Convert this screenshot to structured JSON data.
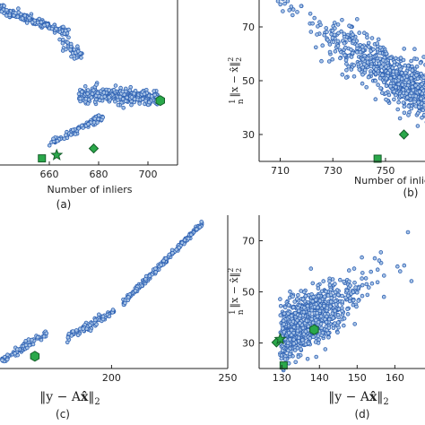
{
  "colors": {
    "point_fill": "#a9c4e6",
    "point_stroke": "#2f62b3",
    "marker_fill": "#2aa84a",
    "marker_stroke": "#155e2a",
    "axis": "#222222"
  },
  "chart_data": [
    {
      "id": "a",
      "type": "scatter",
      "caption": "(a)",
      "xlabel": "Number of inliers",
      "ylabel": "",
      "xlim": [
        640,
        712
      ],
      "ylim": [
        0,
        100
      ],
      "xticks": [
        660,
        680,
        700
      ],
      "xtick_labels": [
        "660",
        "680",
        "700"
      ],
      "yticks": [],
      "grid": false,
      "markers": [
        {
          "shape": "square",
          "x": 657,
          "y": 4
        },
        {
          "shape": "star",
          "x": 663,
          "y": 6
        },
        {
          "shape": "diamond",
          "x": 678,
          "y": 10
        },
        {
          "shape": "hexagon",
          "x": 705,
          "y": 39
        }
      ]
    },
    {
      "id": "b",
      "type": "scatter",
      "caption": "(b)",
      "xlabel": "Number of inliers",
      "ylabel": "1/n ||x − x̂||₂²",
      "xlim": [
        702,
        765
      ],
      "ylim": [
        20,
        80
      ],
      "xticks": [
        710,
        730,
        750
      ],
      "xtick_labels": [
        "710",
        "730",
        "750"
      ],
      "yticks": [
        30,
        50,
        70
      ],
      "ytick_labels": [
        "30",
        "50",
        "70"
      ],
      "grid": false,
      "markers": [
        {
          "shape": "square",
          "x": 747,
          "y": 21
        },
        {
          "shape": "diamond",
          "x": 757,
          "y": 30
        }
      ]
    },
    {
      "id": "c",
      "type": "scatter",
      "caption": "(c)",
      "xlabel": "||y − Ax̂||₂",
      "ylabel": "",
      "xlim": [
        152,
        250
      ],
      "ylim": [
        0,
        100
      ],
      "xticks": [
        200,
        250
      ],
      "xtick_labels": [
        "200",
        "250"
      ],
      "yticks": [],
      "grid": false,
      "markers": [
        {
          "shape": "hexagon",
          "x": 167,
          "y": 8
        }
      ]
    },
    {
      "id": "d",
      "type": "scatter",
      "caption": "(d)",
      "xlabel": "||y − Ax̂||₂",
      "ylabel": "1/n ||x − x̂||₂²",
      "xlim": [
        124,
        168
      ],
      "ylim": [
        20,
        80
      ],
      "xticks": [
        130,
        140,
        150,
        160
      ],
      "xtick_labels": [
        "130",
        "140",
        "150",
        "160"
      ],
      "yticks": [
        30,
        50,
        70
      ],
      "ytick_labels": [
        "30",
        "50",
        "70"
      ],
      "grid": false,
      "markers": [
        {
          "shape": "diamond",
          "x": 128.6,
          "y": 30.2
        },
        {
          "shape": "star",
          "x": 129.6,
          "y": 31.5
        },
        {
          "shape": "hexagon",
          "x": 138.6,
          "y": 35.2
        },
        {
          "shape": "square",
          "x": 130.5,
          "y": 21.2
        }
      ]
    }
  ]
}
